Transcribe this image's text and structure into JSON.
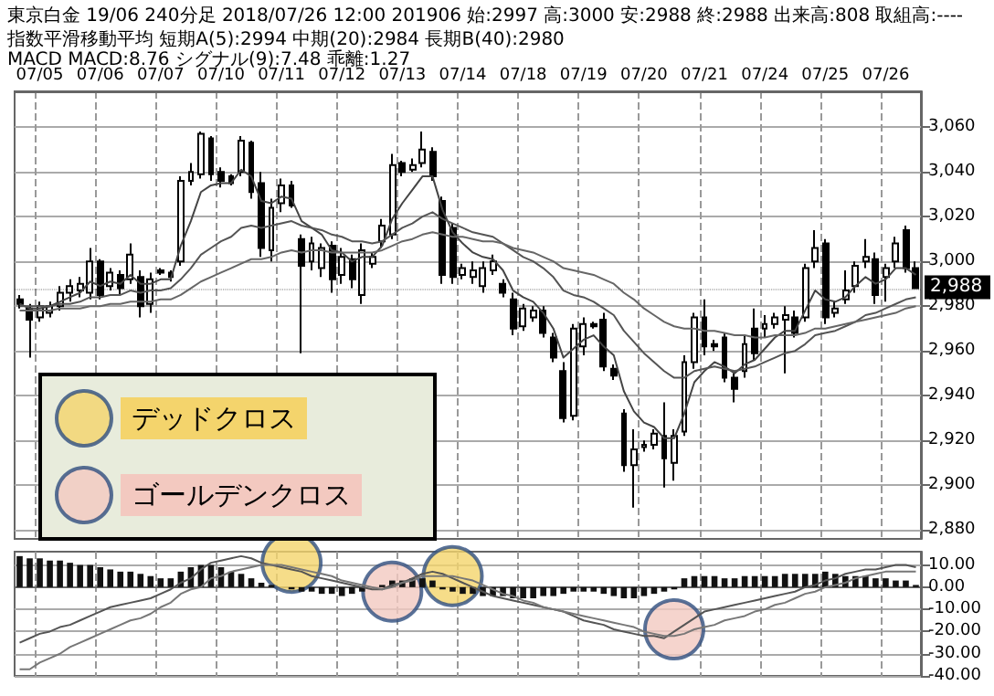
{
  "chart_data": [
    {
      "type": "candlestick",
      "title": "東京白金 19/06 240分足 2018/07/26 12:00 201906 始:2997 高:3000 安:2988 終:2988 出来高:808 取組高:----",
      "subtitle": "指数平滑移動平均 短期A(5):2994 中期(20):2984 長期B(40):2980",
      "annotations": [
        "MACD MACD:8.76 シグナル(9):7.48 乖離:1.27"
      ],
      "categories": [
        null,
        null,
        "07/05",
        null,
        null,
        null,
        null,
        null,
        "07/06",
        null,
        null,
        null,
        null,
        null,
        "07/07",
        null,
        null,
        null,
        null,
        null,
        "07/10",
        null,
        null,
        null,
        null,
        null,
        "07/11",
        null,
        null,
        null,
        null,
        null,
        "07/12",
        null,
        null,
        null,
        null,
        null,
        "07/13",
        null,
        null,
        null,
        null,
        null,
        "07/14",
        null,
        null,
        null,
        null,
        null,
        "07/18",
        null,
        null,
        null,
        null,
        null,
        "07/19",
        null,
        null,
        null,
        null,
        null,
        "07/20",
        null,
        null,
        null,
        null,
        null,
        "07/21",
        null,
        null,
        null,
        null,
        null,
        "07/24",
        null,
        null,
        null,
        null,
        null,
        "07/25",
        null,
        null,
        null,
        null,
        null,
        "07/26",
        null,
        null,
        null
      ],
      "color": "#000000",
      "ohlc": [
        [
          2983,
          2985,
          2979,
          2981
        ],
        [
          2979,
          2981,
          2957,
          2974
        ],
        [
          2975,
          2982,
          2973,
          2980
        ],
        [
          2977,
          2982,
          2975,
          2980
        ],
        [
          2980,
          2989,
          2978,
          2986
        ],
        [
          2986,
          2992,
          2982,
          2989
        ],
        [
          2987,
          2993,
          2984,
          2990
        ],
        [
          2986,
          3006,
          2983,
          3000
        ],
        [
          3000,
          3001,
          2983,
          2985
        ],
        [
          2989,
          2997,
          2987,
          2995
        ],
        [
          2994,
          2996,
          2985,
          2988
        ],
        [
          2992,
          3008,
          2990,
          3003
        ],
        [
          2993,
          2996,
          2975,
          2980
        ],
        [
          2981,
          2995,
          2977,
          2992
        ],
        [
          2996,
          2997,
          2994,
          2995
        ],
        [
          2995,
          2996,
          2991,
          2993
        ],
        [
          3000,
          3038,
          2998,
          3036
        ],
        [
          3036,
          3044,
          3034,
          3040
        ],
        [
          3039,
          3058,
          3037,
          3057
        ],
        [
          3055,
          3056,
          3036,
          3039
        ],
        [
          3040,
          3042,
          3033,
          3036
        ],
        [
          3038,
          3039,
          3034,
          3035
        ],
        [
          3040,
          3056,
          3038,
          3054
        ],
        [
          3053,
          3054,
          3028,
          3031
        ],
        [
          3035,
          3040,
          3002,
          3006
        ],
        [
          3005,
          3028,
          3000,
          3024
        ],
        [
          3026,
          3037,
          3022,
          3034
        ],
        [
          3034,
          3036,
          3024,
          3025
        ],
        [
          3010,
          3012,
          2959,
          2998
        ],
        [
          3000,
          3011,
          2996,
          3008
        ],
        [
          2997,
          3008,
          2993,
          3006
        ],
        [
          3007,
          3009,
          2986,
          2992
        ],
        [
          2994,
          3006,
          2990,
          3002
        ],
        [
          3001,
          3003,
          2988,
          2992
        ],
        [
          2985,
          3008,
          2981,
          3005
        ],
        [
          2999,
          3004,
          2997,
          3002
        ],
        [
          3009,
          3019,
          3006,
          3016
        ],
        [
          3012,
          3048,
          3010,
          3043
        ],
        [
          3044,
          3045,
          3038,
          3040
        ],
        [
          3041,
          3046,
          3040,
          3043
        ],
        [
          3044,
          3058,
          3042,
          3050
        ],
        [
          3049,
          3051,
          3036,
          3038
        ],
        [
          3027,
          3029,
          2990,
          2994
        ],
        [
          3015,
          3017,
          2990,
          2993
        ],
        [
          2994,
          2999,
          2992,
          2997
        ],
        [
          2993,
          3000,
          2990,
          2996
        ],
        [
          2989,
          3000,
          2986,
          2997
        ],
        [
          2996,
          3003,
          2994,
          3000
        ],
        [
          2990,
          2992,
          2984,
          2986
        ],
        [
          2983,
          2986,
          2967,
          2970
        ],
        [
          2971,
          2981,
          2969,
          2979
        ],
        [
          2975,
          2980,
          2973,
          2978
        ],
        [
          2978,
          2980,
          2966,
          2968
        ],
        [
          2966,
          2968,
          2955,
          2957
        ],
        [
          2951,
          2955,
          2928,
          2930
        ],
        [
          2931,
          2972,
          2929,
          2970
        ],
        [
          2962,
          2975,
          2958,
          2972
        ],
        [
          2972,
          2973,
          2970,
          2971
        ],
        [
          2974,
          2977,
          2951,
          2953
        ],
        [
          2952,
          2954,
          2947,
          2949
        ],
        [
          2932,
          2934,
          2906,
          2909
        ],
        [
          2909,
          2925,
          2890,
          2916
        ],
        [
          2917,
          2920,
          2915,
          2918
        ],
        [
          2918,
          2925,
          2916,
          2923
        ],
        [
          2922,
          2937,
          2899,
          2912
        ],
        [
          2910,
          2925,
          2902,
          2922
        ],
        [
          2924,
          2958,
          2922,
          2955
        ],
        [
          2955,
          2977,
          2952,
          2975
        ],
        [
          2975,
          2983,
          2958,
          2962
        ],
        [
          2963,
          2965,
          2960,
          2962
        ],
        [
          2966,
          2968,
          2946,
          2948
        ],
        [
          2948,
          2950,
          2937,
          2943
        ],
        [
          2951,
          2967,
          2948,
          2963
        ],
        [
          2970,
          2979,
          2956,
          2959
        ],
        [
          2970,
          2976,
          2966,
          2972
        ],
        [
          2972,
          2977,
          2970,
          2975
        ],
        [
          2974,
          2980,
          2950,
          2976
        ],
        [
          2975,
          2978,
          2966,
          2968
        ],
        [
          2975,
          2999,
          2973,
          2997
        ],
        [
          3000,
          3014,
          2997,
          3006
        ],
        [
          3008,
          3010,
          2972,
          2975
        ],
        [
          2977,
          2982,
          2975,
          2979
        ],
        [
          2983,
          2996,
          2981,
          2987
        ],
        [
          2989,
          3000,
          2986,
          2998
        ],
        [
          3000,
          3010,
          2997,
          3002
        ],
        [
          3001,
          3004,
          2981,
          2985
        ],
        [
          2993,
          2999,
          2982,
          2997
        ],
        [
          3000,
          3011,
          2997,
          3008
        ],
        [
          3014,
          3016,
          2995,
          2997
        ],
        [
          2997,
          3000,
          2988,
          2988
        ]
      ],
      "series": [
        {
          "type": "line",
          "color": "#444444",
          "values": [
            2981,
            2979,
            2979,
            2980,
            2982,
            2984,
            2986,
            2991,
            2989,
            2991,
            2990,
            2994,
            2990,
            2990,
            2992,
            2992,
            3007,
            3018,
            3031,
            3034,
            3035,
            3035,
            3041,
            3038,
            3027,
            3026,
            3029,
            3028,
            3018,
            3015,
            3012,
            3005,
            3004,
            3000,
            3002,
            3002,
            3007,
            3019,
            3026,
            3032,
            3038,
            3038,
            3023,
            3013,
            3008,
            3004,
            3002,
            3001,
            2996,
            2987,
            2984,
            2982,
            2977,
            2970,
            2957,
            2961,
            2965,
            2967,
            2962,
            2958,
            2942,
            2933,
            2928,
            2926,
            2921,
            2921,
            2932,
            2946,
            2951,
            2955,
            2953,
            2950,
            2954,
            2956,
            2961,
            2966,
            2969,
            2969,
            2978,
            2987,
            2983,
            2982,
            2984,
            2989,
            2993,
            2990,
            2992,
            2997,
            2997,
            2994
          ]
        },
        {
          "type": "line",
          "color": "#555555",
          "values": [
            2980,
            2980,
            2980,
            2980,
            2981,
            2981,
            2982,
            2984,
            2984,
            2985,
            2985,
            2987,
            2986,
            2987,
            2987,
            2988,
            2992,
            2997,
            3003,
            3006,
            3009,
            3011,
            3015,
            3016,
            3015,
            3016,
            3017,
            3018,
            3016,
            3015,
            3014,
            3012,
            3011,
            3009,
            3009,
            3008,
            3009,
            3012,
            3015,
            3017,
            3020,
            3022,
            3019,
            3017,
            3015,
            3013,
            3012,
            3011,
            3008,
            3005,
            3002,
            3000,
            2997,
            2993,
            2987,
            2985,
            2984,
            2982,
            2979,
            2976,
            2969,
            2964,
            2959,
            2955,
            2951,
            2948,
            2948,
            2951,
            2952,
            2953,
            2952,
            2951,
            2952,
            2953,
            2955,
            2957,
            2959,
            2960,
            2963,
            2967,
            2968,
            2969,
            2971,
            2973,
            2976,
            2977,
            2979,
            2981,
            2983,
            2984
          ]
        },
        {
          "type": "line",
          "color": "#666666",
          "values": [
            2978,
            2978,
            2978,
            2978,
            2979,
            2979,
            2979,
            2980,
            2980,
            2981,
            2981,
            2982,
            2982,
            2982,
            2983,
            2983,
            2985,
            2988,
            2991,
            2993,
            2995,
            2997,
            2999,
            3001,
            3001,
            3002,
            3004,
            3005,
            3004,
            3005,
            3005,
            3004,
            3004,
            3004,
            3004,
            3004,
            3005,
            3007,
            3009,
            3010,
            3012,
            3013,
            3012,
            3011,
            3011,
            3010,
            3009,
            3009,
            3008,
            3006,
            3005,
            3004,
            3002,
            3000,
            2997,
            2996,
            2995,
            2994,
            2992,
            2990,
            2986,
            2983,
            2979,
            2976,
            2973,
            2971,
            2970,
            2970,
            2969,
            2969,
            2968,
            2967,
            2967,
            2966,
            2966,
            2967,
            2967,
            2967,
            2968,
            2970,
            2970,
            2971,
            2972,
            2973,
            2974,
            2975,
            2976,
            2977,
            2979,
            2980
          ]
        }
      ],
      "ylim": [
        2876,
        3076
      ],
      "yticks": [
        {
          "value": 2880,
          "label": "2,880"
        },
        {
          "value": 2900,
          "label": "2,900"
        },
        {
          "value": 2920,
          "label": "2,920"
        },
        {
          "value": 2940,
          "label": "2,940"
        },
        {
          "value": 2960,
          "label": "2,960"
        },
        {
          "value": 2980,
          "label": "2,980"
        },
        {
          "value": 3000,
          "label": "3,000"
        },
        {
          "value": 3020,
          "label": "3,020"
        },
        {
          "value": 3040,
          "label": "3,040"
        },
        {
          "value": 3060,
          "label": "3,060"
        }
      ],
      "ref_lines": [
        {
          "axis": "y",
          "value": 2988,
          "label": "2,988"
        }
      ],
      "grid": true,
      "marker": "none"
    },
    {
      "type": "bar",
      "categories": [
        null,
        null,
        null,
        null,
        null,
        null,
        null,
        null,
        null,
        null,
        null,
        null,
        null,
        null,
        null,
        null,
        null,
        null,
        null,
        null,
        null,
        null,
        null,
        null,
        null,
        null,
        null,
        null,
        null,
        null,
        null,
        null,
        null,
        null,
        null,
        null,
        null,
        null,
        null,
        null,
        null,
        null,
        null,
        null,
        null,
        null,
        null,
        null,
        null,
        null,
        null,
        null,
        null,
        null,
        null,
        null,
        null,
        null,
        null,
        null,
        null,
        null,
        null,
        null,
        null,
        null,
        null,
        null,
        null,
        null,
        null,
        null,
        null,
        null,
        null,
        null,
        null,
        null,
        null,
        null,
        null,
        null,
        null,
        null,
        null,
        null,
        null,
        null,
        null,
        null
      ],
      "series": [
        {
          "color": "#111111",
          "values": [
            14,
            13,
            13,
            12,
            12,
            11,
            10,
            10,
            9,
            8,
            7,
            7,
            6,
            5,
            4,
            4,
            7,
            9,
            10,
            10,
            9,
            7,
            6,
            4,
            2,
            1,
            0,
            -1,
            -2,
            -2,
            -3,
            -3,
            -4,
            -3,
            -2,
            0,
            1,
            3,
            3,
            4,
            4,
            3,
            -1,
            -2,
            -3,
            -3,
            -4,
            -4,
            -4,
            -5,
            -5,
            -5,
            -4,
            -4,
            -3,
            -2,
            -2,
            -2,
            -3,
            -4,
            -5,
            -5,
            -4,
            -3,
            -2,
            -1,
            4,
            5,
            5,
            5,
            4,
            4,
            5,
            5,
            5,
            5,
            6,
            6,
            6,
            6,
            7,
            6,
            5,
            5,
            5,
            4,
            4,
            3,
            3,
            1
          ]
        },
        {
          "type": "line",
          "color": "#555555",
          "values": [
            -25,
            -23,
            -21,
            -20,
            -18,
            -17,
            -15,
            -13,
            -11,
            -9,
            -8,
            -7,
            -6,
            -5,
            -3,
            -1,
            2,
            4,
            8,
            11,
            12,
            13,
            14,
            13,
            11,
            10,
            9,
            8,
            7,
            5,
            4,
            3,
            2,
            1,
            0,
            -1,
            -1,
            1,
            2,
            4,
            6,
            7,
            6,
            4,
            2,
            0,
            -2,
            -4,
            -5,
            -6,
            -7,
            -8,
            -9,
            -10,
            -11,
            -13,
            -15,
            -16,
            -17,
            -19,
            -20,
            -21,
            -22,
            -22,
            -23,
            -20,
            -17,
            -14,
            -11,
            -10,
            -9,
            -8,
            -7,
            -6,
            -5,
            -4,
            -3,
            -2,
            0,
            1,
            3,
            4,
            6,
            7,
            8,
            8,
            9,
            10,
            10,
            9
          ]
        },
        {
          "type": "line",
          "color": "#777777",
          "values": [
            -37,
            -37,
            -34,
            -32,
            -30,
            -27,
            -25,
            -23,
            -21,
            -19,
            -17,
            -15,
            -14,
            -12,
            -9,
            -7,
            -3,
            -1,
            0,
            4,
            5,
            7,
            8,
            9,
            10,
            10,
            10,
            9,
            8,
            7,
            6,
            5,
            3,
            2,
            1,
            0,
            -1,
            0,
            2,
            3,
            5,
            5,
            5,
            5,
            4,
            3,
            1,
            -1,
            -3,
            -4,
            -6,
            -7,
            -9,
            -10,
            -11,
            -12,
            -13,
            -14,
            -15,
            -16,
            -17,
            -18,
            -20,
            -21,
            -22,
            -22,
            -21,
            -19,
            -18,
            -17,
            -15,
            -14,
            -13,
            -11,
            -10,
            -8,
            -7,
            -5,
            -3,
            -2,
            0,
            1,
            2,
            4,
            5,
            6,
            7,
            7,
            7,
            7
          ]
        },
        {
          "type": "scatter",
          "name": "デッドクロス",
          "color": "#f4d46c",
          "marker": "circle",
          "values": [
            null,
            null,
            null,
            null,
            null,
            null,
            null,
            null,
            null,
            null,
            null,
            null,
            null,
            null,
            null,
            null,
            null,
            null,
            null,
            null,
            null,
            null,
            null,
            null,
            null,
            null,
            null,
            11,
            null,
            null,
            null,
            null,
            null,
            null,
            null,
            null,
            null,
            null,
            null,
            null,
            null,
            null,
            null,
            5,
            null,
            null,
            null,
            null,
            null,
            null,
            null,
            null,
            null,
            null,
            null,
            null,
            null,
            null,
            null,
            null,
            null,
            null,
            null,
            null,
            null,
            null,
            null,
            null,
            null,
            null,
            null,
            null,
            null,
            null,
            null,
            null,
            null,
            null,
            null,
            null,
            null,
            null,
            null,
            null,
            null,
            null,
            null,
            null,
            null,
            null
          ]
        },
        {
          "type": "scatter",
          "name": "ゴールデンクロス",
          "color": "#f3c9c0",
          "marker": "circle",
          "values": [
            null,
            null,
            null,
            null,
            null,
            null,
            null,
            null,
            null,
            null,
            null,
            null,
            null,
            null,
            null,
            null,
            null,
            null,
            null,
            null,
            null,
            null,
            null,
            null,
            null,
            null,
            null,
            null,
            null,
            null,
            null,
            null,
            null,
            null,
            null,
            null,
            null,
            -2,
            null,
            null,
            null,
            null,
            null,
            null,
            null,
            null,
            null,
            null,
            null,
            null,
            null,
            null,
            null,
            null,
            null,
            null,
            null,
            null,
            null,
            null,
            null,
            null,
            null,
            null,
            null,
            -19,
            null,
            null,
            null,
            null,
            null,
            null,
            null,
            null,
            null,
            null,
            null,
            null,
            null,
            null,
            null,
            null,
            null,
            null,
            null,
            null,
            null,
            null,
            null,
            null
          ]
        }
      ],
      "ylim": [
        -40,
        16
      ],
      "yticks": [
        {
          "value": -40,
          "label": "-40.00"
        },
        {
          "value": -30,
          "label": "-30.00"
        },
        {
          "value": -20,
          "label": "-20.00"
        },
        {
          "value": -10,
          "label": "-10.00"
        },
        {
          "value": 0,
          "label": "0.00"
        },
        {
          "value": 10,
          "label": "10.00"
        }
      ],
      "tick_labels": "y",
      "grid": true,
      "marker": "none",
      "legend": "top left"
    }
  ]
}
